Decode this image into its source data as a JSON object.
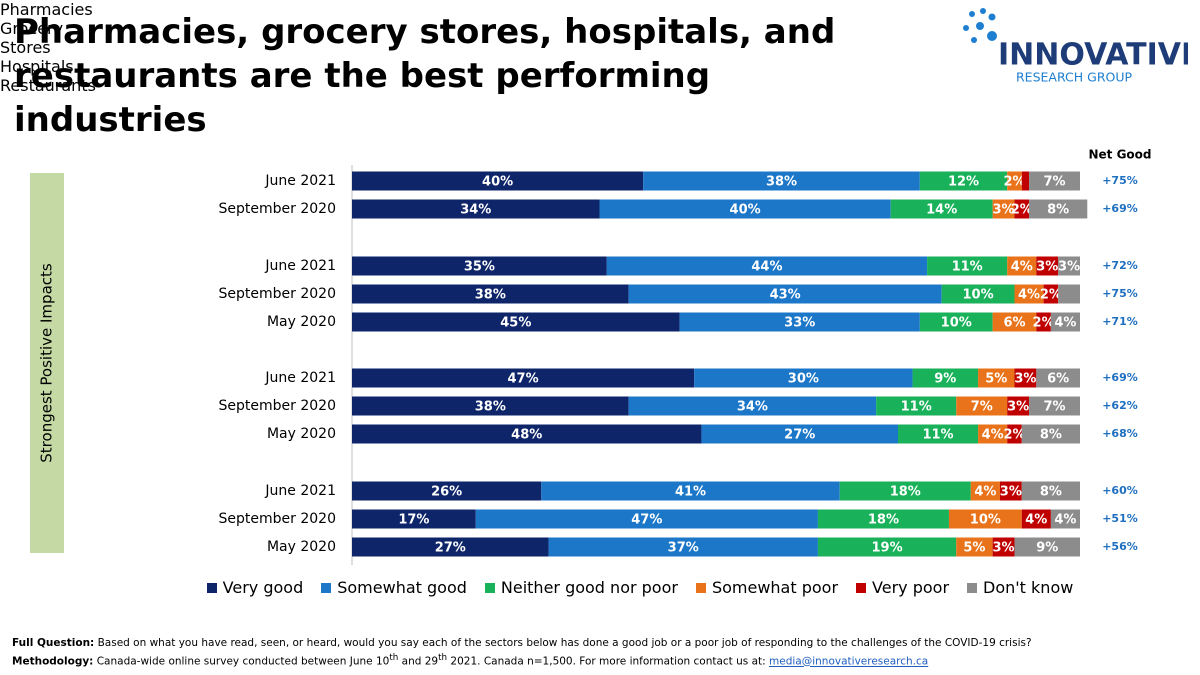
{
  "chart_data": {
    "type": "stacked-bar",
    "title": "Pharmacies, grocery stores, hospitals, and restaurants are the best performing industries",
    "side_label": "Strongest Positive Impacts",
    "net_good_label": "Net Good",
    "xlim": [
      0,
      100
    ],
    "series": [
      {
        "name": "Very good",
        "color": "#0e2569"
      },
      {
        "name": "Somewhat good",
        "color": "#1d77c8"
      },
      {
        "name": "Neither good nor poor",
        "color": "#19b25a"
      },
      {
        "name": "Somewhat poor",
        "color": "#e8731a"
      },
      {
        "name": "Very poor",
        "color": "#c00000"
      },
      {
        "name": "Don't know",
        "color": "#8c8c8c"
      }
    ],
    "groups": [
      {
        "name": "Pharmacies",
        "categories": [
          "June 2021",
          "September 2020"
        ],
        "values": [
          [
            40,
            38,
            12,
            2,
            1,
            7
          ],
          [
            34,
            40,
            14,
            3,
            2,
            8
          ]
        ],
        "value_labels": [
          [
            "40%",
            "38%",
            "12%",
            "2%",
            null,
            "7%"
          ],
          [
            "34%",
            "40%",
            "14%",
            "3%",
            "2%",
            "8%"
          ]
        ],
        "net_good": [
          75,
          69
        ],
        "net_good_labels": [
          "+75%",
          "+69%"
        ]
      },
      {
        "name": "Grocery Stores",
        "categories": [
          "June 2021",
          "September 2020",
          "May 2020"
        ],
        "values": [
          [
            35,
            44,
            11,
            4,
            3,
            3
          ],
          [
            38,
            43,
            10,
            4,
            2,
            3
          ],
          [
            45,
            33,
            10,
            6,
            2,
            4
          ]
        ],
        "value_labels": [
          [
            "35%",
            "44%",
            "11%",
            "4%",
            "3%",
            "3%"
          ],
          [
            "38%",
            "43%",
            "10%",
            "4%",
            "2%",
            null
          ],
          [
            "45%",
            "33%",
            "10%",
            "6%",
            "2%",
            "4%"
          ]
        ],
        "net_good": [
          72,
          75,
          71
        ],
        "net_good_labels": [
          "+72%",
          "+75%",
          "+71%"
        ]
      },
      {
        "name": "Hospitals",
        "categories": [
          "June 2021",
          "September 2020",
          "May 2020"
        ],
        "values": [
          [
            47,
            30,
            9,
            5,
            3,
            6
          ],
          [
            38,
            34,
            11,
            7,
            3,
            7
          ],
          [
            48,
            27,
            11,
            4,
            2,
            8
          ]
        ],
        "value_labels": [
          [
            "47%",
            "30%",
            "9%",
            "5%",
            "3%",
            "6%"
          ],
          [
            "38%",
            "34%",
            "11%",
            "7%",
            "3%",
            "7%"
          ],
          [
            "48%",
            "27%",
            "11%",
            "4%",
            "2%",
            "8%"
          ]
        ],
        "net_good": [
          69,
          62,
          68
        ],
        "net_good_labels": [
          "+69%",
          "+62%",
          "+68%"
        ]
      },
      {
        "name": "Restaurants",
        "categories": [
          "June 2021",
          "September 2020",
          "May 2020"
        ],
        "values": [
          [
            26,
            41,
            18,
            4,
            3,
            8
          ],
          [
            17,
            47,
            18,
            10,
            4,
            4
          ],
          [
            27,
            37,
            19,
            5,
            3,
            9
          ]
        ],
        "value_labels": [
          [
            "26%",
            "41%",
            "18%",
            "4%",
            "3%",
            "8%"
          ],
          [
            "17%",
            "47%",
            "18%",
            "10%",
            "4%",
            "4%"
          ],
          [
            "27%",
            "37%",
            "19%",
            "5%",
            "3%",
            "9%"
          ]
        ],
        "net_good": [
          60,
          51,
          56
        ],
        "net_good_labels": [
          "+60%",
          "+51%",
          "+56%"
        ]
      }
    ]
  },
  "logo": {
    "name": "INNOVATIVE",
    "subtitle": "RESEARCH GROUP"
  },
  "footer": {
    "question_label": "Full Question:",
    "question": " Based on what you have read, seen, or heard, would you say each of the sectors below has done a good job or a poor job of responding to the challenges of the COVID-19 crisis?",
    "methodology_label": "Methodology:",
    "methodology": [
      " Canada-wide online survey conducted between June 10",
      "th",
      " and 29",
      "th",
      "  2021.  Canada n=1,500.  For more information contact us at: "
    ],
    "email": "media@innovativeresearch.ca"
  }
}
